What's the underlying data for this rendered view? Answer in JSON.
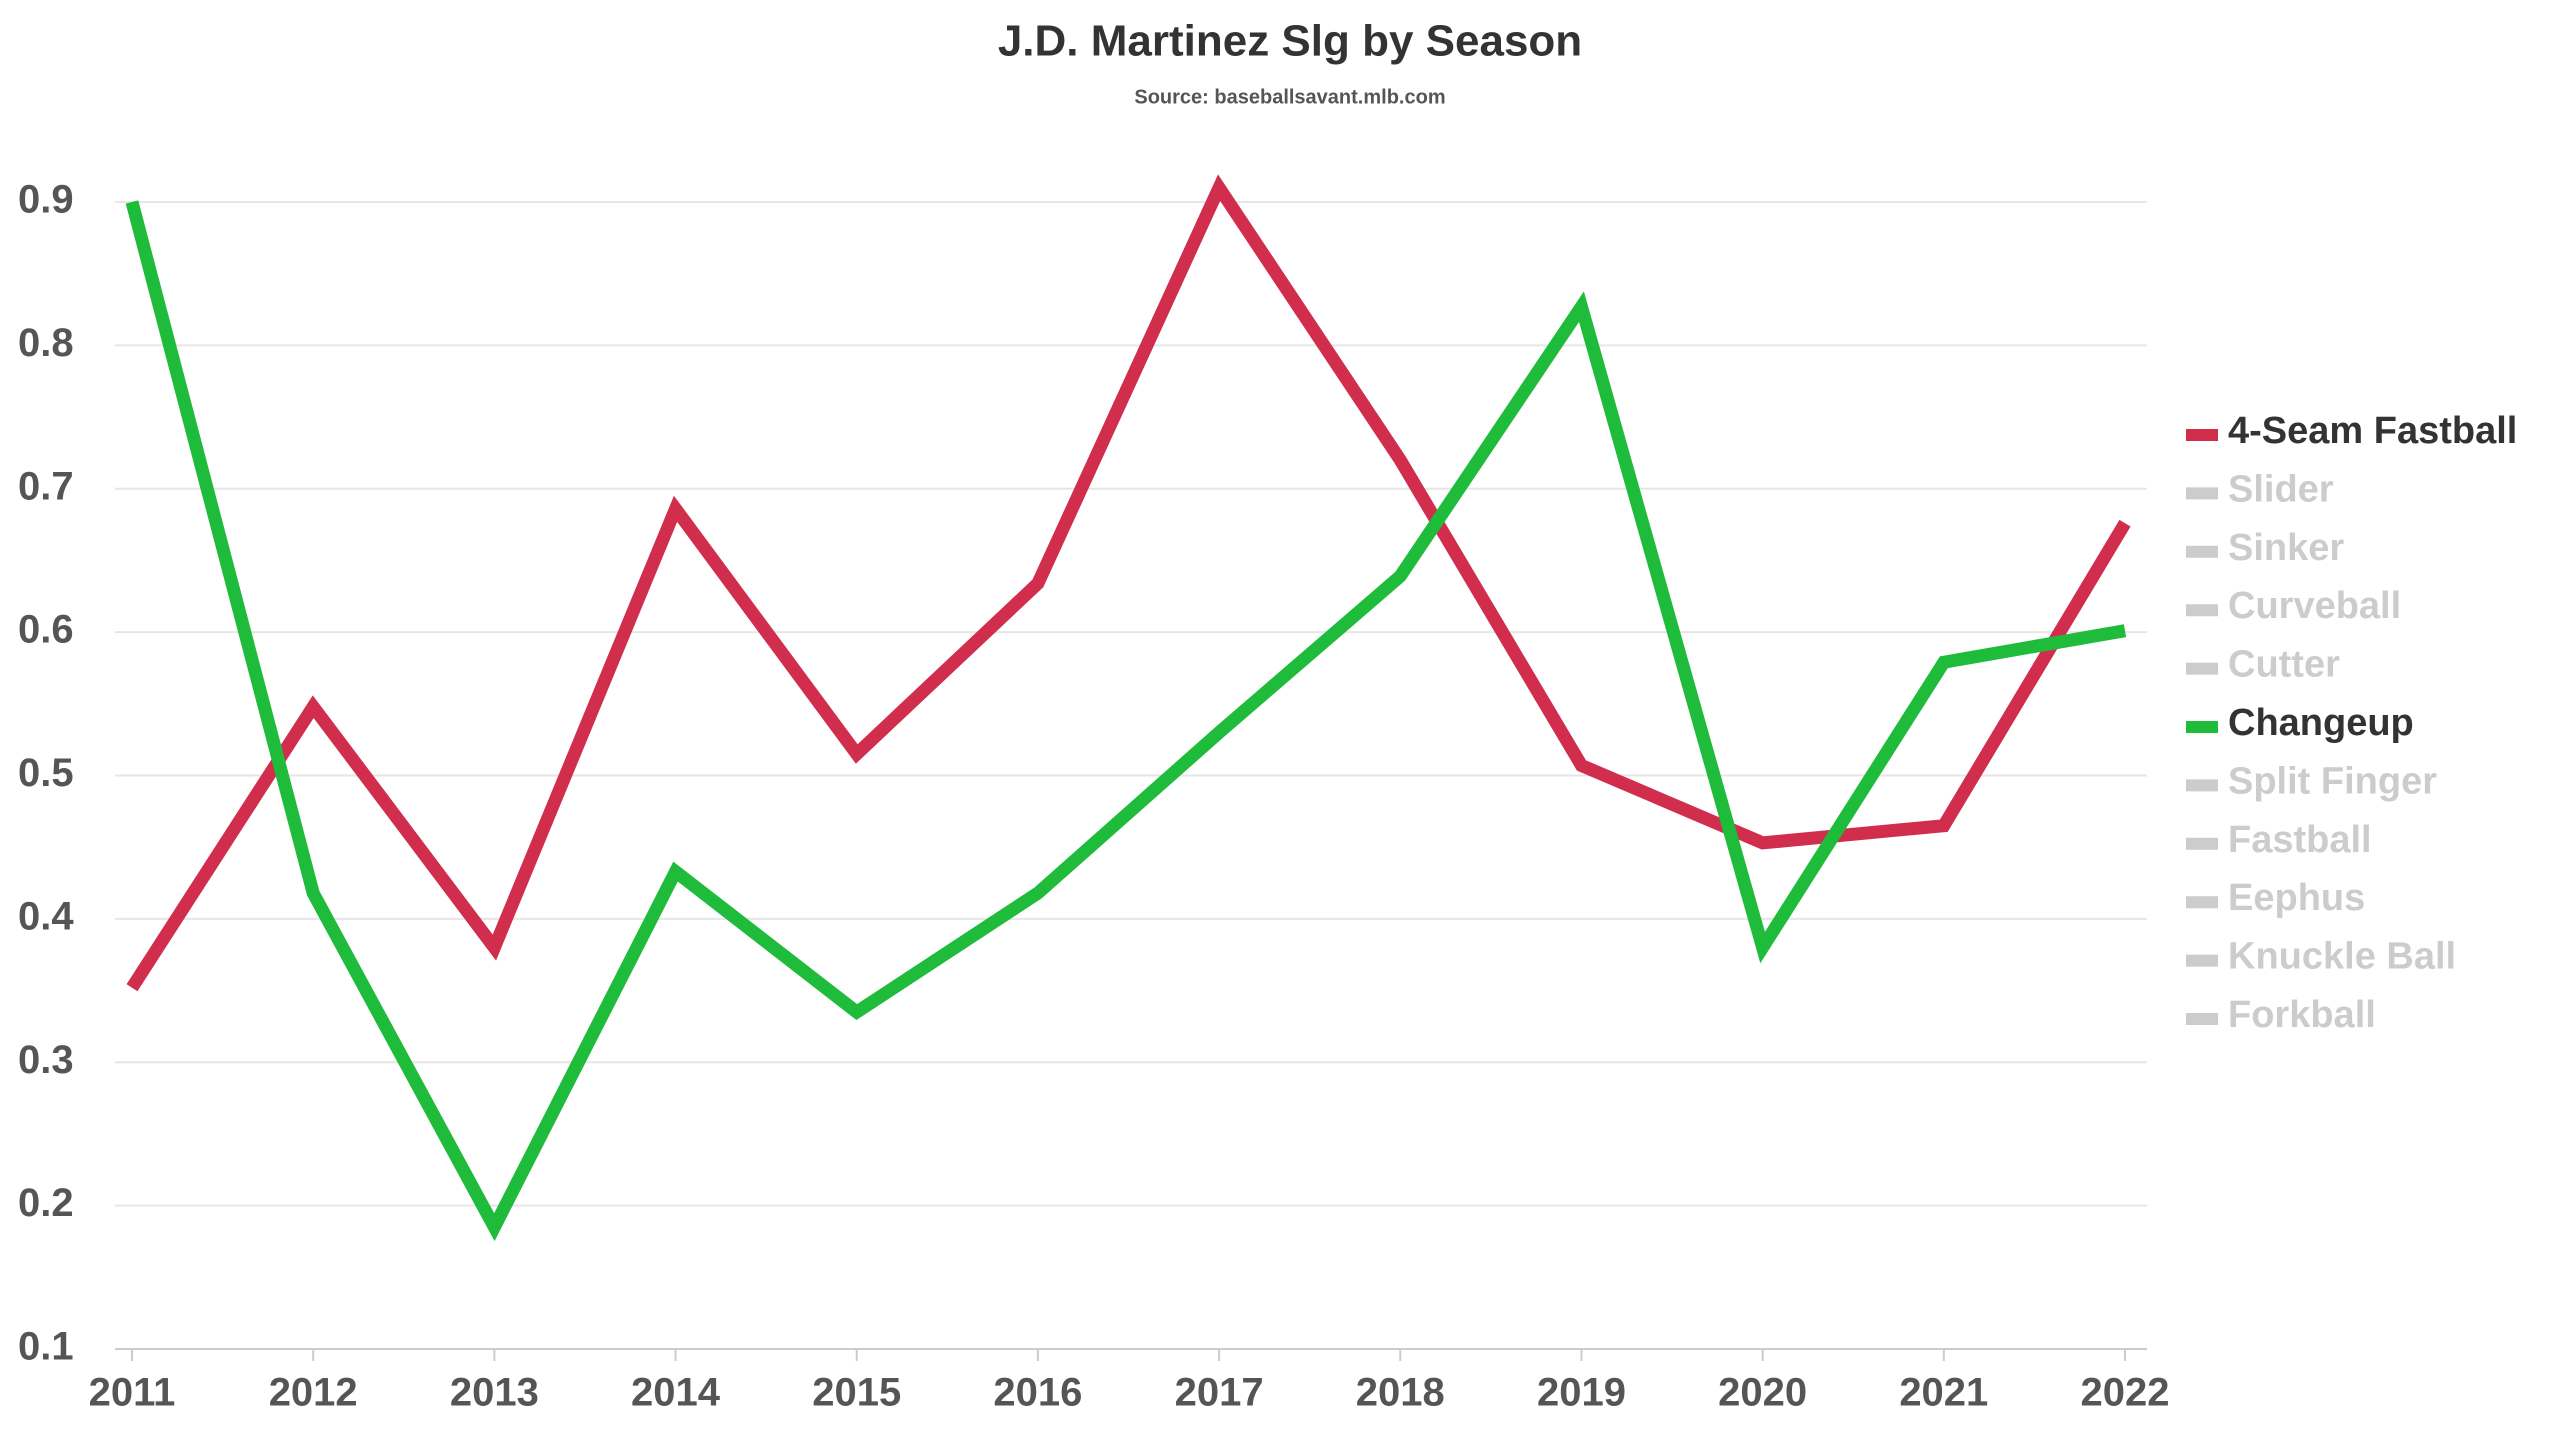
{
  "chart_data": {
    "type": "line",
    "title": "J.D. Martinez Slg by Season",
    "subtitle": "Source: baseballsavant.mlb.com",
    "x": [
      2011,
      2012,
      2013,
      2014,
      2015,
      2016,
      2017,
      2018,
      2019,
      2020,
      2021,
      2022
    ],
    "xlim": [
      2011,
      2022
    ],
    "xticks": [
      2011,
      2012,
      2013,
      2014,
      2015,
      2016,
      2017,
      2018,
      2019,
      2020,
      2021,
      2022
    ],
    "ylim": [
      0.1,
      0.9
    ],
    "yticks": [
      0.1,
      0.2,
      0.3,
      0.4,
      0.5,
      0.6,
      0.7,
      0.8,
      0.9
    ],
    "grid": true,
    "legend": "right",
    "series": [
      {
        "name": "4-Seam Fastball",
        "color": "#d12e4e",
        "values": [
          0.352,
          0.548,
          0.38,
          0.686,
          0.515,
          0.634,
          0.91,
          0.72,
          0.507,
          0.453,
          0.465,
          0.676
        ]
      },
      {
        "name": "Changeup",
        "color": "#1fbb3a",
        "values": [
          0.9,
          0.418,
          0.185,
          0.433,
          0.335,
          0.418,
          0.53,
          0.639,
          0.827,
          0.38,
          0.579,
          0.601
        ]
      }
    ],
    "legend_order": [
      "4-Seam Fastball",
      "Slider",
      "Sinker",
      "Curveball",
      "Cutter",
      "Changeup",
      "Split Finger",
      "Fastball",
      "Eephus",
      "Knuckle Ball",
      "Forkball"
    ],
    "legend_inactive_color": "#cccccc"
  }
}
